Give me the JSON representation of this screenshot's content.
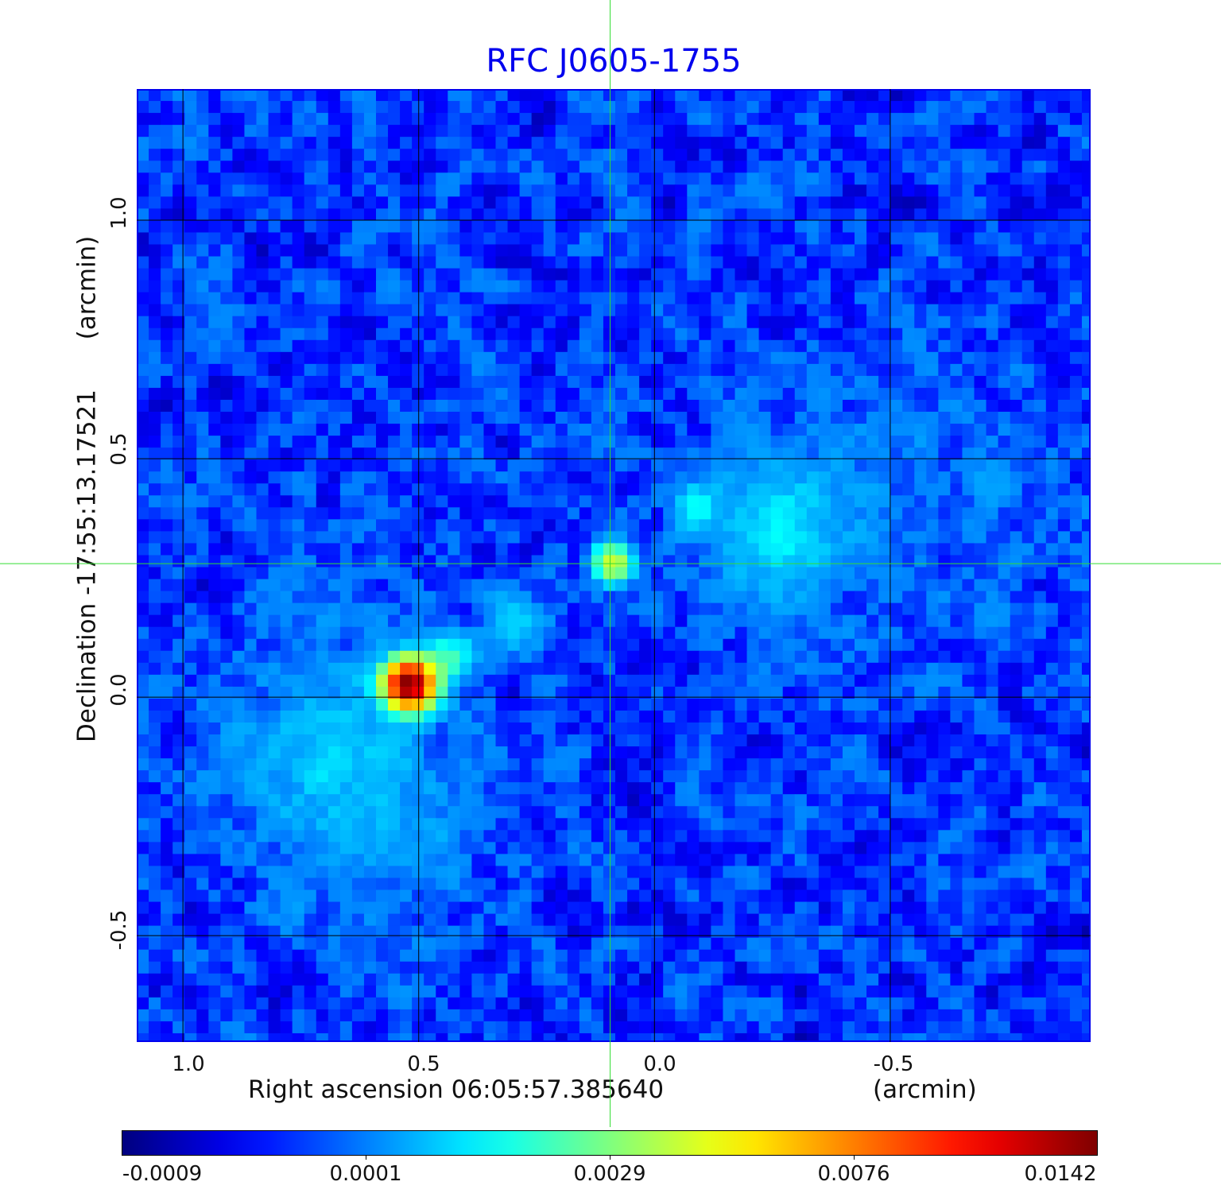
{
  "chart_data": {
    "type": "heatmap",
    "title": "RFC J0605-1755",
    "xlabel": "Right ascension  06:05:57.385640",
    "xunit": "(arcmin)",
    "ylabel": "Declination  -17:55:13.17521",
    "yunit": "(arcmin)",
    "xlim": [
      1.098,
      -0.925
    ],
    "ylim": [
      -0.723,
      1.275
    ],
    "xticks": [
      "1.0",
      "0.5",
      "0.0",
      "-0.5"
    ],
    "xtick_values": [
      1.0,
      0.5,
      0.0,
      -0.5
    ],
    "yticks": [
      "1.0",
      "0.5",
      "0.0",
      "-0.5"
    ],
    "ytick_values": [
      1.0,
      0.5,
      0.0,
      -0.5
    ],
    "grid": true,
    "crosshair": {
      "x": 0.094,
      "y": 0.28,
      "color": "#33dd33"
    },
    "colormap": "jet",
    "colorbar": {
      "ticks": [
        "-0.0009",
        "0.0001",
        "0.0029",
        "0.0076",
        "0.0142"
      ],
      "values": [
        -0.0009,
        0.0001,
        0.0029,
        0.0076,
        0.0142
      ]
    },
    "background_level": -0.0002,
    "sources": [
      {
        "x": 0.522,
        "y": 0.03,
        "peak": 0.0142,
        "width": 0.035
      },
      {
        "x": 0.093,
        "y": 0.285,
        "peak": 0.0045,
        "width": 0.03
      },
      {
        "x": 0.44,
        "y": 0.08,
        "peak": 0.0022,
        "width": 0.035
      },
      {
        "x": 0.3,
        "y": 0.16,
        "peak": 0.0012,
        "width": 0.05
      },
      {
        "x": -0.088,
        "y": 0.4,
        "peak": 0.0016,
        "width": 0.035
      },
      {
        "x": -0.26,
        "y": 0.35,
        "peak": 0.0014,
        "width": 0.09
      },
      {
        "x": 0.68,
        "y": -0.1,
        "peak": 0.0009,
        "width": 0.16
      },
      {
        "x": 0.6,
        "y": -0.3,
        "peak": 0.0004,
        "width": 0.15
      },
      {
        "x": -0.55,
        "y": 0.4,
        "peak": 0.0003,
        "width": 0.25
      }
    ]
  }
}
